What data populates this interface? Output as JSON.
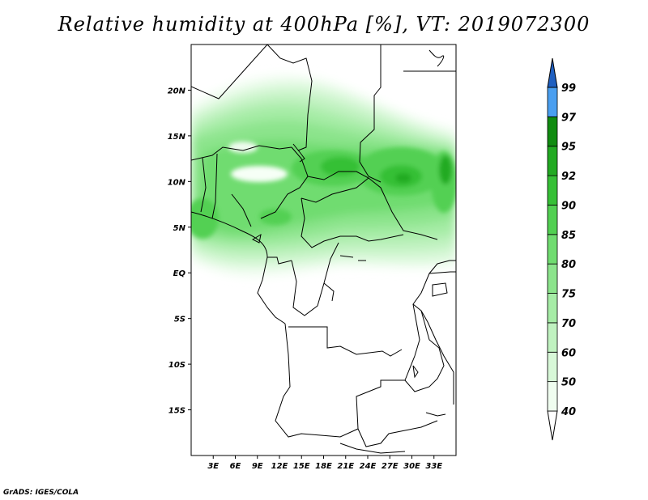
{
  "title": "Relative humidity at 400hPa [%], VT: 2019072300",
  "credit": "GrADS: IGES/COLA",
  "map": {
    "region": "Central Africa",
    "projection": "lat-lon",
    "lon_range": [
      0,
      36
    ],
    "lat_range": [
      -20,
      25
    ],
    "lat_ticks": [
      {
        "label": "20N",
        "value": 20
      },
      {
        "label": "15N",
        "value": 15
      },
      {
        "label": "10N",
        "value": 10
      },
      {
        "label": "5N",
        "value": 5
      },
      {
        "label": "EQ",
        "value": 0
      },
      {
        "label": "5S",
        "value": -5
      },
      {
        "label": "10S",
        "value": -10
      },
      {
        "label": "15S",
        "value": -15
      }
    ],
    "lon_ticks": [
      {
        "label": "3E",
        "value": 3
      },
      {
        "label": "6E",
        "value": 6
      },
      {
        "label": "9E",
        "value": 9
      },
      {
        "label": "12E",
        "value": 12
      },
      {
        "label": "15E",
        "value": 15
      },
      {
        "label": "18E",
        "value": 18
      },
      {
        "label": "21E",
        "value": 21
      },
      {
        "label": "24E",
        "value": 24
      },
      {
        "label": "27E",
        "value": 27
      },
      {
        "label": "30E",
        "value": 30
      },
      {
        "label": "33E",
        "value": 33
      }
    ]
  },
  "colorbar": {
    "levels": [
      "40",
      "50",
      "60",
      "70",
      "75",
      "80",
      "85",
      "90",
      "92",
      "95",
      "97",
      "99"
    ],
    "colors": [
      "#f0fdf0",
      "#d8f8d8",
      "#c0f2c0",
      "#a6eca6",
      "#8ce48c",
      "#70dc70",
      "#52d052",
      "#36c036",
      "#22aa22",
      "#108c10",
      "#4a9ff0",
      "#1e6fdc",
      "#1f5fc0"
    ]
  },
  "humidity_palette": {
    "c40": "#f0fdf0",
    "c50": "#d8f8d8",
    "c60": "#c0f2c0",
    "c70": "#a6eca6",
    "c75": "#8ce48c",
    "c80": "#70dc70",
    "c85": "#52d052",
    "c90": "#36c036",
    "c92": "#22aa22"
  }
}
